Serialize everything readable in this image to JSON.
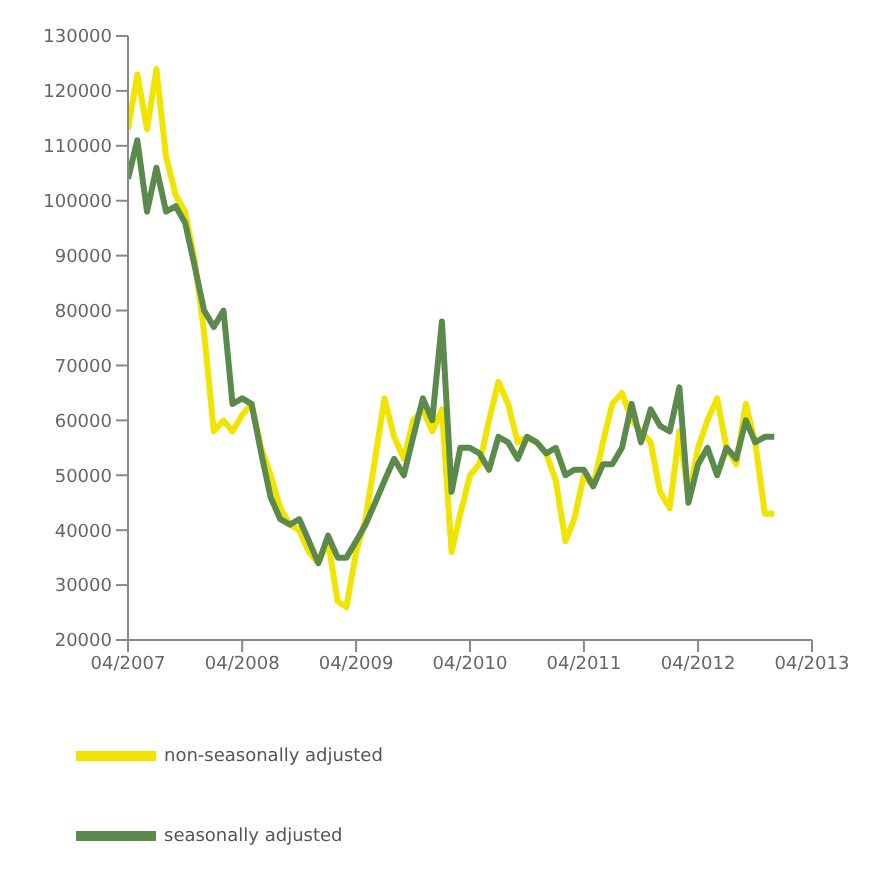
{
  "chart_data": {
    "type": "line",
    "x": [
      "2007-04",
      "2007-05",
      "2007-06",
      "2007-07",
      "2007-08",
      "2007-09",
      "2007-10",
      "2007-11",
      "2007-12",
      "2008-01",
      "2008-02",
      "2008-03",
      "2008-04",
      "2008-05",
      "2008-06",
      "2008-07",
      "2008-08",
      "2008-09",
      "2008-10",
      "2008-11",
      "2008-12",
      "2009-01",
      "2009-02",
      "2009-03",
      "2009-04",
      "2009-05",
      "2009-06",
      "2009-07",
      "2009-08",
      "2009-09",
      "2009-10",
      "2009-11",
      "2009-12",
      "2010-01",
      "2010-02",
      "2010-03",
      "2010-04",
      "2010-05",
      "2010-06",
      "2010-07",
      "2010-08",
      "2010-09",
      "2010-10",
      "2010-11",
      "2010-12",
      "2011-01",
      "2011-02",
      "2011-03",
      "2011-04",
      "2011-05",
      "2011-06",
      "2011-07",
      "2011-08",
      "2011-09",
      "2011-10",
      "2011-11",
      "2011-12",
      "2012-01",
      "2012-02",
      "2012-03",
      "2012-04",
      "2012-05",
      "2012-06",
      "2012-07",
      "2012-08",
      "2012-09",
      "2012-10",
      "2012-11",
      "2012-12"
    ],
    "series": [
      {
        "name": "non-seasonally adjusted",
        "color": "#f0e400",
        "values": [
          113000,
          123000,
          113000,
          124000,
          108000,
          101000,
          98000,
          89000,
          76000,
          58000,
          60000,
          58000,
          61000,
          63000,
          55000,
          50000,
          44000,
          41000,
          40000,
          36000,
          34000,
          38000,
          27000,
          26000,
          36000,
          42000,
          53000,
          64000,
          57000,
          53000,
          60000,
          62000,
          58000,
          62000,
          36000,
          43000,
          50000,
          52000,
          60000,
          67000,
          63000,
          56000,
          57000,
          56000,
          54000,
          49000,
          38000,
          42000,
          50000,
          48000,
          56000,
          63000,
          65000,
          60000,
          58000,
          56000,
          47000,
          44000,
          58000,
          46000,
          55000,
          60000,
          64000,
          55000,
          52000,
          63000,
          56000,
          43000,
          43000
        ]
      },
      {
        "name": "seasonally adjusted",
        "color": "#5b8a4c",
        "values": [
          104000,
          111000,
          98000,
          106000,
          98000,
          99000,
          96000,
          88000,
          80000,
          77000,
          80000,
          63000,
          64000,
          63000,
          54000,
          46000,
          42000,
          41000,
          42000,
          38000,
          34000,
          39000,
          35000,
          35000,
          38000,
          41000,
          45000,
          49000,
          53000,
          50000,
          57000,
          64000,
          60000,
          78000,
          47000,
          55000,
          55000,
          54000,
          51000,
          57000,
          56000,
          53000,
          57000,
          56000,
          54000,
          55000,
          50000,
          51000,
          51000,
          48000,
          52000,
          52000,
          55000,
          63000,
          56000,
          62000,
          59000,
          58000,
          66000,
          45000,
          52000,
          55000,
          50000,
          55000,
          53000,
          60000,
          56000,
          57000,
          57000
        ]
      }
    ],
    "xlim": [
      "2007-04",
      "2013-04"
    ],
    "xticks": [
      {
        "value": "2007-04",
        "label": "04/2007"
      },
      {
        "value": "2008-04",
        "label": "04/2008"
      },
      {
        "value": "2009-04",
        "label": "04/2009"
      },
      {
        "value": "2010-04",
        "label": "04/2010"
      },
      {
        "value": "2011-04",
        "label": "04/2011"
      },
      {
        "value": "2012-04",
        "label": "04/2012"
      },
      {
        "value": "2013-04",
        "label": "04/2013"
      }
    ],
    "ylim": [
      20000,
      130000
    ],
    "yticks": [
      20000,
      30000,
      40000,
      50000,
      60000,
      70000,
      80000,
      90000,
      100000,
      110000,
      120000,
      130000
    ],
    "grid": false,
    "legend": "bottom left",
    "marker": "none",
    "line_style": "solid"
  }
}
